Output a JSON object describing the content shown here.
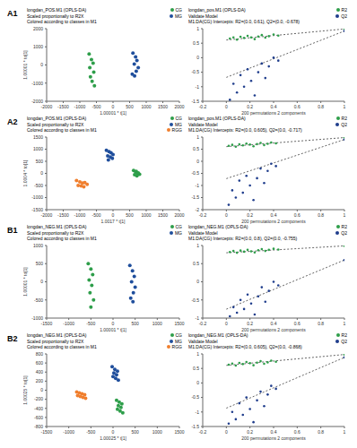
{
  "chart_data": [
    {
      "panel": "A1",
      "type": "scatter",
      "title": "longdan_POS.M1 (OPLS-DA)",
      "subtitle": [
        "Scaled proportionally to R2X",
        "Colored according to classes in M1"
      ],
      "x_label": "1.00001 * t[1]",
      "y_label": "1.00001 * to[1]",
      "xlim": [
        -2000,
        2000
      ],
      "xticks": [
        -2000,
        -1500,
        -1000,
        -500,
        0,
        500,
        1000,
        1500,
        2000
      ],
      "ylim": [
        -2000,
        2000
      ],
      "yticks": [
        -2000,
        -1000,
        0,
        1000,
        2000
      ],
      "grid": false,
      "legend": "upper right",
      "series": [
        {
          "name": "CG",
          "color": "#2e9e4a",
          "x": [
            -720,
            -650,
            -600,
            -700,
            -580,
            -680,
            -630,
            -560
          ],
          "values": [
            600,
            300,
            100,
            -150,
            -400,
            -650,
            -900,
            -1150
          ]
        },
        {
          "name": "MG",
          "color": "#1f4e9c",
          "x": [
            600,
            680,
            720,
            640,
            760,
            700,
            580,
            650
          ],
          "values": [
            650,
            450,
            250,
            50,
            -150,
            -350,
            -500,
            -600
          ]
        }
      ]
    },
    {
      "panel": "A1",
      "type": "scatter",
      "title": "longdan_pos.M1 (OPLS-DA)",
      "subtitle": [
        "Validate Model",
        "M1.DA(CG) Intercepts: R2=(0.0, 0.61), Q2=(0.0, -0.678)"
      ],
      "x_label": "200 permutations 2 components",
      "xlim": [
        -0.2,
        1
      ],
      "xticks": [
        -0.2,
        0,
        0.2,
        0.4,
        0.6,
        0.8,
        1
      ],
      "ylim": [
        -1.5,
        1
      ],
      "yticks": [
        -1.5,
        -1,
        -0.5,
        0,
        0.5,
        1
      ],
      "grid": false,
      "legend": "upper right",
      "series": [
        {
          "name": "R2",
          "color": "#2e9e4a",
          "x": [
            0.03,
            0.06,
            0.09,
            0.12,
            0.15,
            0.18,
            0.21,
            0.24,
            0.27,
            0.3,
            0.33,
            0.36,
            0.4,
            0.44,
            1
          ],
          "values": [
            0.66,
            0.7,
            0.62,
            0.72,
            0.68,
            0.75,
            0.7,
            0.64,
            0.73,
            0.78,
            0.69,
            0.74,
            0.8,
            0.76,
            0.99
          ],
          "fit": {
            "x": [
              0,
              1
            ],
            "values": [
              0.61,
              0.99
            ]
          }
        },
        {
          "name": "Q2",
          "color": "#1f3d8c",
          "x": [
            0.03,
            0.06,
            0.09,
            0.12,
            0.15,
            0.18,
            0.21,
            0.24,
            0.27,
            0.3,
            0.33,
            0.36,
            0.4,
            0.44,
            1
          ],
          "values": [
            -1.45,
            -0.9,
            -1.2,
            -0.6,
            -1.0,
            -0.4,
            -0.8,
            -1.3,
            -0.5,
            -0.2,
            -0.7,
            -0.3,
            0.0,
            -0.1,
            0.92
          ],
          "fit": {
            "x": [
              0,
              1
            ],
            "values": [
              -0.678,
              0.92
            ]
          }
        }
      ]
    },
    {
      "panel": "A2",
      "type": "scatter",
      "title": "longdan_POS.M1 (OPLS-DA)",
      "subtitle": [
        "Scaled proportionally to R2X",
        "Colored according to classes in M1"
      ],
      "x_label": "1.0017 * t[1]",
      "y_label": "1.0004 * to[1]",
      "xlim": [
        -2000,
        2000
      ],
      "xticks": [
        -2000,
        -1500,
        -1000,
        -500,
        0,
        500,
        1000,
        1500,
        2000
      ],
      "ylim": [
        -1500,
        1500
      ],
      "yticks": [
        -1500,
        -1000,
        -500,
        0,
        500,
        1000,
        1500
      ],
      "grid": false,
      "legend": "upper right",
      "series": [
        {
          "name": "CG",
          "color": "#2e9e4a",
          "x": [
            620,
            680,
            740,
            800,
            700,
            760,
            650,
            720
          ],
          "values": [
            120,
            60,
            0,
            -40,
            80,
            20,
            -60,
            -100
          ]
        },
        {
          "name": "MG",
          "color": "#1f4e9c",
          "x": [
            -200,
            -120,
            -60,
            0,
            -160,
            -80,
            -20,
            -140
          ],
          "values": [
            950,
            900,
            850,
            780,
            720,
            680,
            620,
            560
          ]
        },
        {
          "name": "RGG",
          "color": "#f07f2e",
          "x": [
            -1100,
            -1000,
            -920,
            -850,
            -780,
            -1050,
            -960,
            -880
          ],
          "values": [
            -300,
            -350,
            -400,
            -380,
            -450,
            -500,
            -520,
            -560
          ]
        }
      ]
    },
    {
      "panel": "A2",
      "type": "scatter",
      "title": "longdan_pos.M1 (OPLS-DA)",
      "subtitle": [
        "Validate Model",
        "M1.DA(CG) Intercepts: R2=(0.0, 0.605), Q2=(0.0, -0.717)"
      ],
      "x_label": "200 permutations 2 components",
      "xlim": [
        -0.2,
        1
      ],
      "xticks": [
        -0.2,
        0,
        0.2,
        0.4,
        0.6,
        0.8,
        1
      ],
      "ylim": [
        -2,
        1
      ],
      "yticks": [
        -2,
        -1.5,
        -1,
        -0.5,
        0,
        0.5,
        1
      ],
      "grid": false,
      "legend": "upper right",
      "series": [
        {
          "name": "R2",
          "color": "#2e9e4a",
          "x": [
            0.02,
            0.05,
            0.08,
            0.11,
            0.14,
            0.17,
            0.2,
            0.23,
            0.26,
            0.29,
            0.32,
            0.35,
            0.38,
            0.42,
            1
          ],
          "values": [
            0.64,
            0.68,
            0.6,
            0.7,
            0.66,
            0.73,
            0.69,
            0.62,
            0.71,
            0.76,
            0.67,
            0.72,
            0.78,
            0.74,
            0.98
          ],
          "fit": {
            "x": [
              0,
              1
            ],
            "values": [
              0.605,
              0.98
            ]
          }
        },
        {
          "name": "Q2",
          "color": "#1f3d8c",
          "x": [
            0.02,
            0.05,
            0.08,
            0.11,
            0.14,
            0.17,
            0.2,
            0.23,
            0.26,
            0.29,
            0.32,
            0.35,
            0.38,
            0.42,
            1
          ],
          "values": [
            -1.8,
            -1.2,
            -1.5,
            -0.8,
            -1.3,
            -0.6,
            -1.0,
            -1.6,
            -0.7,
            -0.3,
            -0.9,
            -0.4,
            -0.1,
            -0.2,
            0.9
          ],
          "fit": {
            "x": [
              0,
              1
            ],
            "values": [
              -0.717,
              0.9
            ]
          }
        }
      ]
    },
    {
      "panel": "B1",
      "type": "scatter",
      "title": "longdan_NEG.M1 (OPLS-DA)",
      "subtitle": [
        "Scaled proportionally to R2X",
        "Colored according to classes in M1"
      ],
      "x_label": "1.00001 * t[1]",
      "y_label": "1.00001 * to[1]",
      "xlim": [
        -1500,
        1500
      ],
      "xticks": [
        -1500,
        -1000,
        -500,
        0,
        500,
        1000,
        1500
      ],
      "ylim": [
        -1000,
        1000
      ],
      "yticks": [
        -1000,
        -500,
        0,
        500,
        1000
      ],
      "grid": false,
      "legend": "upper right",
      "series": [
        {
          "name": "CG",
          "color": "#2e9e4a",
          "x": [
            -560,
            -500,
            -460,
            -540,
            -480,
            -520,
            -440,
            -500
          ],
          "values": [
            500,
            350,
            200,
            50,
            -100,
            -300,
            -500,
            -700
          ]
        },
        {
          "name": "MG",
          "color": "#1f4e9c",
          "x": [
            380,
            440,
            480,
            420,
            500,
            460,
            400,
            450
          ],
          "values": [
            450,
            300,
            150,
            0,
            -150,
            -300,
            -450,
            -550
          ]
        }
      ]
    },
    {
      "panel": "B1",
      "type": "scatter",
      "title": "longdan_NEG.M1 (OPLS-DA)",
      "subtitle": [
        "Validate Model",
        "M1.DA(CG) Intercepts: R2=(0.0, 0.8), Q2=(0.0, -0.755)"
      ],
      "x_label": "200 permutations 2 components",
      "xlim": [
        -0.2,
        1
      ],
      "xticks": [
        -0.2,
        0,
        0.2,
        0.4,
        0.6,
        0.8,
        1
      ],
      "ylim": [
        -1,
        1
      ],
      "yticks": [
        -1,
        -0.5,
        0,
        0.5,
        1
      ],
      "grid": false,
      "legend": "upper right",
      "series": [
        {
          "name": "R2",
          "color": "#2e9e4a",
          "x": [
            0.03,
            0.06,
            0.09,
            0.12,
            0.15,
            0.18,
            0.21,
            0.24,
            0.27,
            0.3,
            0.33,
            0.36,
            0.4,
            0.44,
            1
          ],
          "values": [
            0.82,
            0.85,
            0.8,
            0.86,
            0.83,
            0.88,
            0.84,
            0.81,
            0.87,
            0.9,
            0.85,
            0.88,
            0.91,
            0.89,
            0.99
          ],
          "fit": {
            "x": [
              0,
              1
            ],
            "values": [
              0.8,
              0.99
            ]
          }
        },
        {
          "name": "Q2",
          "color": "#1f3d8c",
          "x": [
            0.03,
            0.06,
            0.09,
            0.12,
            0.15,
            0.18,
            0.21,
            0.24,
            0.27,
            0.3,
            0.33,
            0.36,
            0.4,
            0.44,
            1
          ],
          "values": [
            -0.95,
            -0.7,
            -0.85,
            -0.5,
            -0.75,
            -0.35,
            -0.6,
            -0.9,
            -0.4,
            -0.15,
            -0.55,
            -0.25,
            0.0,
            -0.1,
            0.6
          ],
          "fit": {
            "x": [
              0,
              1
            ],
            "values": [
              -0.755,
              0.6
            ]
          }
        }
      ]
    },
    {
      "panel": "B2",
      "type": "scatter",
      "title": "longdan_NEG.M1 (OPLS-DA)",
      "subtitle": [
        "Scaled proportionally to R2X",
        "Colored according to classes in M1"
      ],
      "x_label": "1.00025 * t[1]",
      "y_label": "1.00025 * to[1]",
      "xlim": [
        -1500,
        1500
      ],
      "xticks": [
        -1500,
        -1000,
        -500,
        0,
        500,
        1000,
        1500
      ],
      "ylim": [
        -800,
        800
      ],
      "yticks": [
        -800,
        -600,
        -400,
        -200,
        0,
        200,
        400,
        600,
        800
      ],
      "grid": false,
      "legend": "upper right",
      "series": [
        {
          "name": "CG",
          "color": "#2e9e4a",
          "x": [
            80,
            140,
            200,
            120,
            180,
            100,
            160,
            220
          ],
          "values": [
            -220,
            -260,
            -300,
            -340,
            -380,
            -420,
            -460,
            -500
          ]
        },
        {
          "name": "MG",
          "color": "#1f4e9c",
          "x": [
            -20,
            40,
            100,
            20,
            80,
            0,
            60,
            120
          ],
          "values": [
            520,
            460,
            420,
            380,
            340,
            300,
            260,
            220
          ]
        },
        {
          "name": "RGG",
          "color": "#f07f2e",
          "x": [
            -820,
            -760,
            -700,
            -640,
            -800,
            -740,
            -680,
            -620
          ],
          "values": [
            -40,
            -60,
            -80,
            -100,
            -120,
            -140,
            -160,
            -180
          ]
        }
      ]
    },
    {
      "panel": "B2",
      "type": "scatter",
      "title": "longdan_NEG.M1 (OPLS-DA)",
      "subtitle": [
        "Validate Model",
        "M1.DA(CG) Intercepts: R2=(0.0, 0.605), Q2=(0.0, -0.868)"
      ],
      "x_label": "200 permutations 2 components",
      "xlim": [
        -0.2,
        1
      ],
      "xticks": [
        -0.2,
        0,
        0.2,
        0.4,
        0.6,
        0.8,
        1
      ],
      "ylim": [
        -1.5,
        1
      ],
      "yticks": [
        -1.5,
        -1,
        -0.5,
        0,
        0.5,
        1
      ],
      "grid": false,
      "legend": "upper right",
      "series": [
        {
          "name": "R2",
          "color": "#2e9e4a",
          "x": [
            0.02,
            0.05,
            0.08,
            0.11,
            0.14,
            0.17,
            0.2,
            0.23,
            0.26,
            0.29,
            0.32,
            0.35,
            0.38,
            0.42,
            1
          ],
          "values": [
            0.63,
            0.67,
            0.6,
            0.69,
            0.65,
            0.72,
            0.68,
            0.61,
            0.7,
            0.75,
            0.66,
            0.71,
            0.77,
            0.73,
            0.98
          ],
          "fit": {
            "x": [
              0,
              1
            ],
            "values": [
              0.605,
              0.98
            ]
          }
        },
        {
          "name": "Q2",
          "color": "#1f3d8c",
          "x": [
            0.02,
            0.05,
            0.08,
            0.11,
            0.14,
            0.17,
            0.2,
            0.23,
            0.26,
            0.29,
            0.32,
            0.35,
            0.38,
            0.42,
            1
          ],
          "values": [
            -1.4,
            -1.0,
            -1.25,
            -0.7,
            -1.1,
            -0.5,
            -0.9,
            -1.35,
            -0.6,
            -0.3,
            -0.8,
            -0.4,
            -0.1,
            -0.2,
            0.88
          ],
          "fit": {
            "x": [
              0,
              1
            ],
            "values": [
              -0.868,
              0.88
            ]
          }
        }
      ]
    }
  ]
}
